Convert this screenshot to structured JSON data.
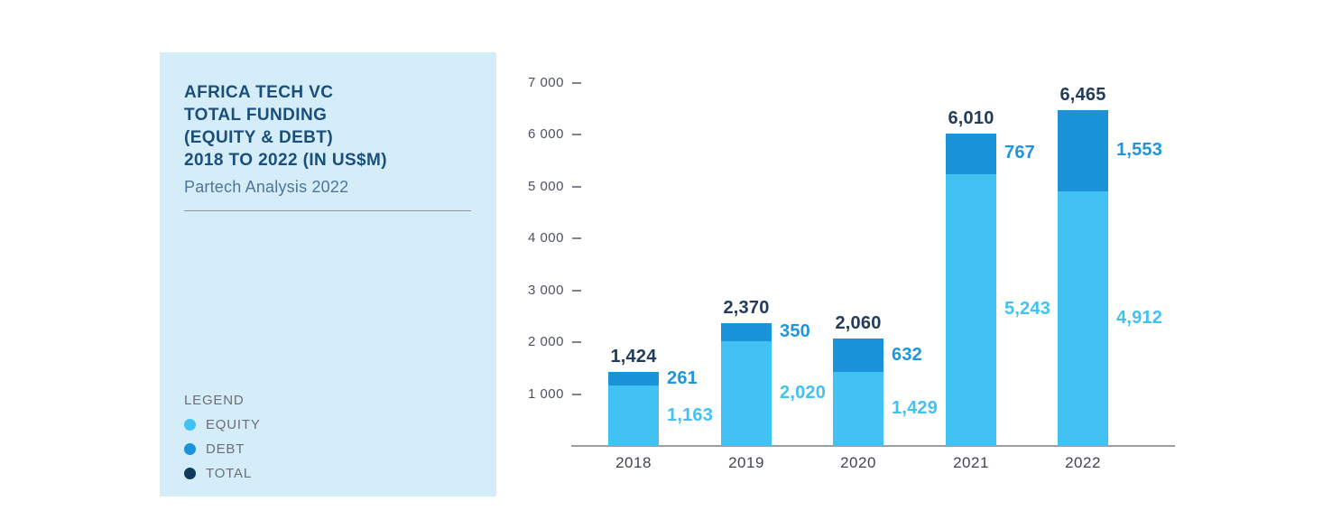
{
  "panel": {
    "title_lines": [
      "AFRICA TECH VC",
      "TOTAL FUNDING",
      "(EQUITY & DEBT)",
      "2018 TO 2022 (IN US$M)"
    ],
    "subtitle": "Partech Analysis 2022",
    "background": "#D4EDF9",
    "legend": {
      "heading": "LEGEND",
      "items": [
        {
          "label": "EQUITY",
          "color": "#41C2F2"
        },
        {
          "label": "DEBT",
          "color": "#1B93D9"
        },
        {
          "label": "TOTAL",
          "color": "#103B5D"
        }
      ]
    }
  },
  "chart_data": {
    "type": "bar",
    "stacked": true,
    "title": "AFRICA TECH VC TOTAL FUNDING (EQUITY & DEBT) 2018 TO 2022 (IN US$M)",
    "subtitle": "Partech Analysis 2022",
    "categories": [
      "2018",
      "2019",
      "2020",
      "2021",
      "2022"
    ],
    "series": [
      {
        "name": "EQUITY",
        "color": "#41C2F2",
        "label_color": "#41C2F2",
        "values": [
          1163,
          2020,
          1429,
          5243,
          4912
        ],
        "value_labels": [
          "1,163",
          "2,020",
          "1,429",
          "5,243",
          "4,912"
        ]
      },
      {
        "name": "DEBT",
        "color": "#1B93D9",
        "label_color": "#1E95DC",
        "values": [
          261,
          350,
          632,
          767,
          1553
        ],
        "value_labels": [
          "261",
          "350",
          "632",
          "767",
          "1,553"
        ]
      }
    ],
    "totals": {
      "values": [
        1424,
        2370,
        2060,
        6010,
        6465
      ],
      "value_labels": [
        "1,424",
        "2,370",
        "2,060",
        "6,010",
        "6,465"
      ],
      "label_color": "#233C5C"
    },
    "y_axis": {
      "min": 0,
      "max": 7000,
      "tick_step": 1000,
      "ticks": [
        1000,
        2000,
        3000,
        4000,
        5000,
        6000,
        7000
      ],
      "tick_labels": [
        "1 000",
        "2 000",
        "3 000",
        "4 000",
        "5 000",
        "6 000",
        "7 000"
      ]
    },
    "grid": false,
    "legend_position": "left-panel"
  }
}
